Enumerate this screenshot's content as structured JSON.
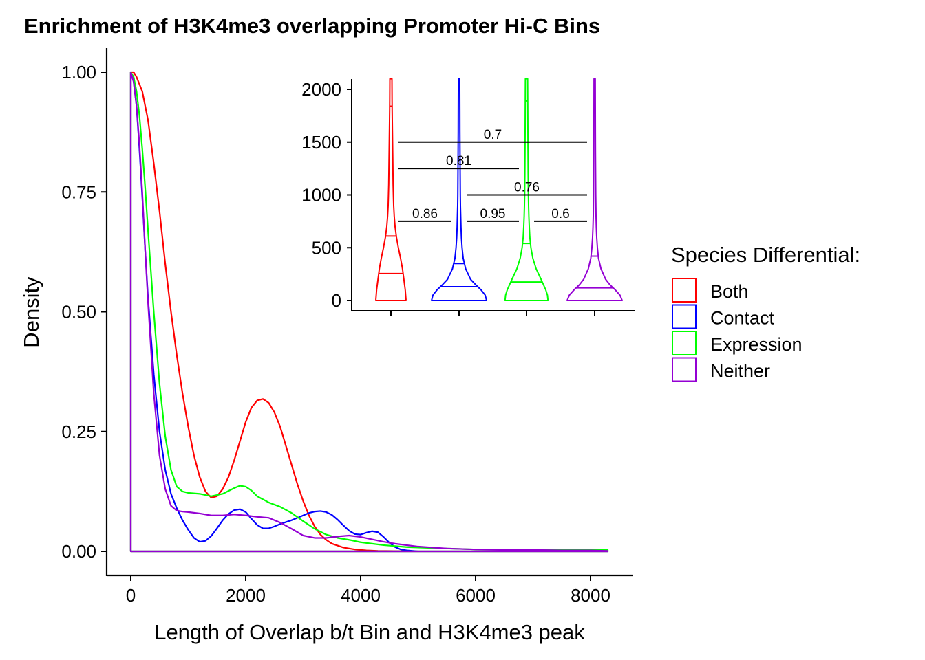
{
  "title": "Enrichment of H3K4me3 overlapping Promoter Hi-C Bins",
  "colors": {
    "Both": "#ff0000",
    "Contact": "#0000ff",
    "Expression": "#00ff00",
    "Neither": "#9400d3"
  },
  "legend": {
    "title": "Species Differential:",
    "placement": "right",
    "items": [
      "Both",
      "Contact",
      "Expression",
      "Neither"
    ]
  },
  "chart_data": [
    {
      "type": "line",
      "subtype": "density",
      "xlabel": "Length of Overlap b/t Bin and H3K4me3 peak",
      "ylabel": "Density",
      "xlim": [
        -400,
        8700
      ],
      "ylim": [
        -0.05,
        1.05
      ],
      "xticks": [
        "0",
        "2000",
        "4000",
        "6000",
        "8000"
      ],
      "yticks": [
        "0.00",
        "0.25",
        "0.50",
        "0.75",
        "1.00"
      ],
      "grid": false,
      "series": [
        {
          "name": "Both",
          "x": [
            0,
            50,
            100,
            200,
            300,
            400,
            500,
            600,
            700,
            800,
            900,
            1000,
            1100,
            1200,
            1300,
            1400,
            1500,
            1600,
            1700,
            1800,
            1900,
            2000,
            2100,
            2200,
            2300,
            2400,
            2500,
            2600,
            2700,
            2800,
            2900,
            3000,
            3100,
            3200,
            3300,
            3400,
            3500,
            3700,
            3900,
            4100,
            4300,
            5000,
            6000,
            7000,
            8300
          ],
          "y": [
            1.0,
            1.0,
            0.99,
            0.96,
            0.9,
            0.81,
            0.71,
            0.6,
            0.5,
            0.41,
            0.33,
            0.26,
            0.2,
            0.155,
            0.125,
            0.112,
            0.115,
            0.13,
            0.155,
            0.19,
            0.23,
            0.27,
            0.3,
            0.315,
            0.318,
            0.31,
            0.29,
            0.26,
            0.22,
            0.18,
            0.14,
            0.105,
            0.075,
            0.052,
            0.035,
            0.024,
            0.016,
            0.008,
            0.004,
            0.002,
            0.001,
            0.0,
            0.0,
            0.0,
            0.0
          ]
        },
        {
          "name": "Contact",
          "x": [
            0,
            50,
            100,
            150,
            200,
            250,
            300,
            400,
            500,
            600,
            700,
            800,
            900,
            1000,
            1100,
            1200,
            1300,
            1400,
            1500,
            1600,
            1700,
            1800,
            1900,
            2000,
            2100,
            2200,
            2300,
            2400,
            2500,
            2600,
            2700,
            2800,
            2900,
            3000,
            3100,
            3200,
            3300,
            3400,
            3500,
            3600,
            3700,
            3800,
            3900,
            4000,
            4100,
            4200,
            4300,
            4400,
            4500,
            4600,
            4700,
            4800,
            5000,
            6000,
            7000,
            8300
          ],
          "y": [
            1.0,
            0.98,
            0.93,
            0.84,
            0.74,
            0.63,
            0.53,
            0.37,
            0.25,
            0.17,
            0.12,
            0.09,
            0.065,
            0.045,
            0.028,
            0.02,
            0.022,
            0.032,
            0.048,
            0.065,
            0.078,
            0.086,
            0.088,
            0.082,
            0.068,
            0.055,
            0.048,
            0.048,
            0.052,
            0.057,
            0.061,
            0.065,
            0.07,
            0.075,
            0.08,
            0.083,
            0.084,
            0.082,
            0.076,
            0.066,
            0.054,
            0.043,
            0.036,
            0.035,
            0.039,
            0.042,
            0.04,
            0.03,
            0.018,
            0.009,
            0.004,
            0.002,
            0.0,
            0.0,
            0.0,
            0.0
          ]
        },
        {
          "name": "Expression",
          "x": [
            0,
            50,
            100,
            150,
            200,
            250,
            300,
            400,
            500,
            600,
            700,
            800,
            900,
            1000,
            1200,
            1400,
            1600,
            1800,
            1900,
            2000,
            2100,
            2200,
            2400,
            2600,
            2800,
            3000,
            3200,
            3400,
            3600,
            3800,
            4000,
            4200,
            4400,
            4600,
            4800,
            5000,
            5500,
            6000,
            7000,
            8000,
            8300
          ],
          "y": [
            1.0,
            0.99,
            0.96,
            0.91,
            0.84,
            0.76,
            0.67,
            0.5,
            0.35,
            0.24,
            0.17,
            0.135,
            0.125,
            0.122,
            0.12,
            0.115,
            0.12,
            0.132,
            0.137,
            0.135,
            0.127,
            0.115,
            0.102,
            0.093,
            0.08,
            0.063,
            0.047,
            0.035,
            0.028,
            0.024,
            0.019,
            0.016,
            0.013,
            0.011,
            0.009,
            0.008,
            0.006,
            0.004,
            0.004,
            0.003,
            0.003
          ]
        },
        {
          "name": "Neither",
          "x": [
            0,
            50,
            100,
            150,
            200,
            250,
            300,
            400,
            500,
            600,
            700,
            800,
            900,
            1000,
            1200,
            1400,
            1600,
            1800,
            2000,
            2200,
            2400,
            2600,
            2800,
            3000,
            3200,
            3400,
            3600,
            3800,
            4000,
            4200,
            4400,
            4600,
            5000,
            5500,
            6000,
            6500,
            7000,
            7500,
            8000,
            8300
          ],
          "y": [
            1.0,
            0.98,
            0.93,
            0.85,
            0.75,
            0.63,
            0.52,
            0.33,
            0.2,
            0.13,
            0.095,
            0.085,
            0.083,
            0.082,
            0.079,
            0.075,
            0.075,
            0.077,
            0.075,
            0.072,
            0.07,
            0.06,
            0.047,
            0.033,
            0.028,
            0.028,
            0.031,
            0.033,
            0.03,
            0.025,
            0.02,
            0.016,
            0.01,
            0.006,
            0.004,
            0.003,
            0.003,
            0.002,
            0.002,
            0.001
          ]
        }
      ]
    },
    {
      "type": "violin",
      "inset": true,
      "placement": "top-right",
      "categories": [
        "Both",
        "Contact",
        "Expression",
        "Neither"
      ],
      "ylim": [
        -100,
        2100
      ],
      "yticks": [
        "0",
        "500",
        "1000",
        "1500",
        "2000"
      ],
      "grid": false,
      "series": [
        {
          "name": "Both",
          "quantiles": [
            255,
            610,
            1840
          ],
          "profile_y": [
            0,
            100,
            200,
            300,
            400,
            500,
            600,
            700,
            800,
            900,
            1000,
            1100,
            1200,
            1300,
            1400,
            1500,
            1600,
            1700,
            1800,
            1900,
            2000,
            2100
          ],
          "profile_w": [
            0.55,
            0.52,
            0.47,
            0.42,
            0.35,
            0.27,
            0.2,
            0.15,
            0.12,
            0.1,
            0.09,
            0.08,
            0.075,
            0.07,
            0.065,
            0.06,
            0.055,
            0.05,
            0.045,
            0.042,
            0.04,
            0.038
          ]
        },
        {
          "name": "Contact",
          "quantiles": [
            130,
            350
          ],
          "profile_y": [
            0,
            50,
            100,
            150,
            200,
            300,
            400,
            500,
            600,
            700,
            800,
            900,
            1000,
            1200,
            1400,
            1600,
            1800,
            2000,
            2100
          ],
          "profile_w": [
            1.0,
            0.95,
            0.8,
            0.6,
            0.42,
            0.24,
            0.15,
            0.11,
            0.085,
            0.07,
            0.06,
            0.05,
            0.045,
            0.04,
            0.035,
            0.03,
            0.028,
            0.025,
            0.022
          ]
        },
        {
          "name": "Expression",
          "quantiles": [
            175,
            540,
            1890
          ],
          "profile_y": [
            0,
            50,
            100,
            200,
            300,
            400,
            500,
            600,
            700,
            800,
            900,
            1000,
            1200,
            1400,
            1600,
            1800,
            2000,
            2100
          ],
          "profile_w": [
            0.78,
            0.76,
            0.7,
            0.53,
            0.35,
            0.23,
            0.16,
            0.12,
            0.1,
            0.085,
            0.075,
            0.068,
            0.06,
            0.055,
            0.05,
            0.046,
            0.042,
            0.04
          ]
        },
        {
          "name": "Neither",
          "quantiles": [
            120,
            420,
            1890
          ],
          "profile_y": [
            0,
            50,
            100,
            150,
            200,
            300,
            400,
            500,
            600,
            700,
            800,
            1000,
            1200,
            1400,
            1600,
            1800,
            2000,
            2100
          ],
          "profile_w": [
            1.0,
            0.92,
            0.75,
            0.55,
            0.4,
            0.23,
            0.14,
            0.1,
            0.075,
            0.06,
            0.05,
            0.04,
            0.035,
            0.03,
            0.027,
            0.025,
            0.023,
            0.022
          ]
        }
      ],
      "comparisons": [
        {
          "groups": [
            "Both",
            "Contact"
          ],
          "p": "0.86",
          "y": 750
        },
        {
          "groups": [
            "Contact",
            "Expression"
          ],
          "p": "0.95",
          "y": 750
        },
        {
          "groups": [
            "Expression",
            "Neither"
          ],
          "p": "0.6",
          "y": 750
        },
        {
          "groups": [
            "Contact",
            "Neither"
          ],
          "p": "0.76",
          "y": 1000
        },
        {
          "groups": [
            "Both",
            "Expression"
          ],
          "p": "0.81",
          "y": 1250
        },
        {
          "groups": [
            "Both",
            "Neither"
          ],
          "p": "0.7",
          "y": 1500
        }
      ]
    }
  ]
}
